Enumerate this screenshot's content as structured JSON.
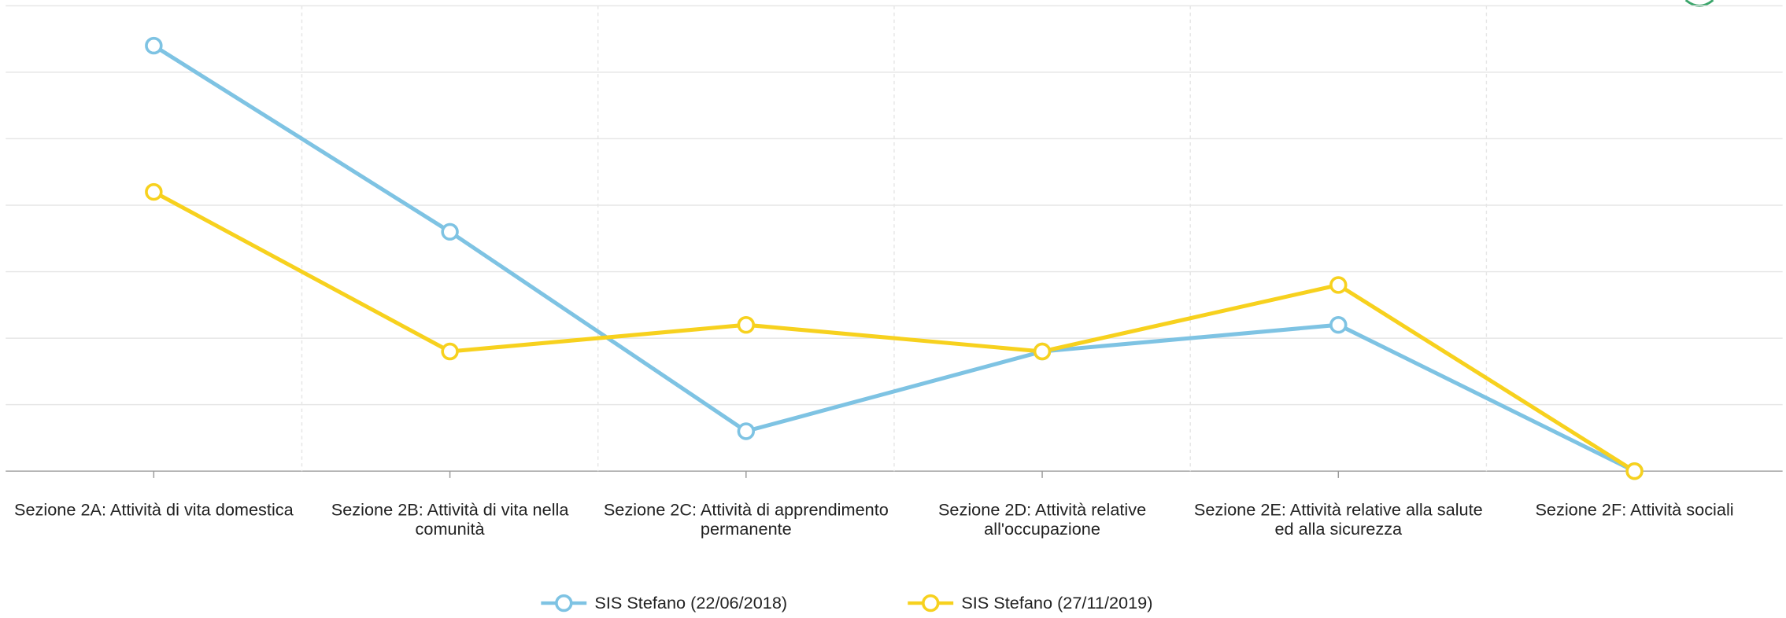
{
  "chart_data": {
    "type": "line",
    "categories": [
      "Sezione 2A: Attività di vita domestica",
      "Sezione 2B: Attività di vita nella comunità",
      "Sezione 2C: Attività di apprendimento permanente",
      "Sezione 2D: Attività relative all'occupazione",
      "Sezione 2E: Attività relative alla salute ed alla sicurezza",
      "Sezione 2F: Attività sociali"
    ],
    "series": [
      {
        "name": "SIS Stefano (22/06/2018)",
        "color": "#7ec3e3",
        "values": [
          6.4,
          3.6,
          0.6,
          1.8,
          2.2,
          0
        ]
      },
      {
        "name": "SIS Stefano (27/11/2019)",
        "color": "#f7d11e",
        "values": [
          4.2,
          1.8,
          2.2,
          1.8,
          2.8,
          0
        ]
      }
    ],
    "ylim": [
      0,
      7
    ],
    "yticks": [
      0,
      1,
      2,
      3,
      4,
      5,
      6,
      7
    ],
    "grid": true,
    "legend": "bottom"
  }
}
